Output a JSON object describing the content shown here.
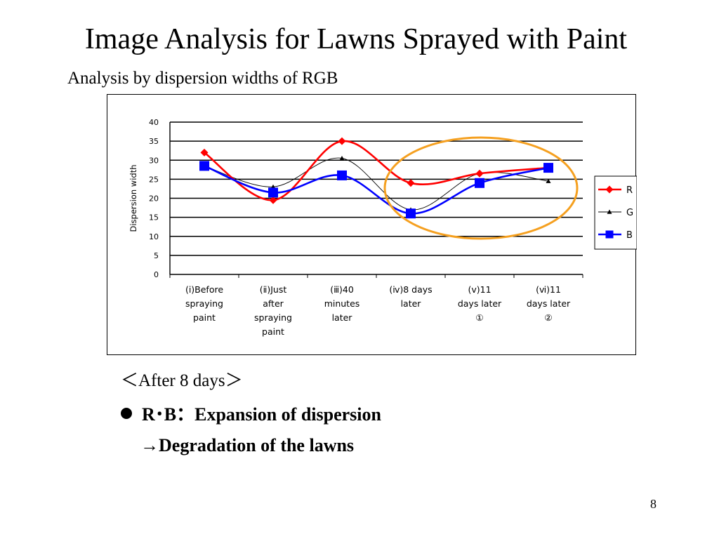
{
  "slide": {
    "title": "Image Analysis for Lawns Sprayed with Paint",
    "subtitle": "Analysis by dispersion widths of RGB",
    "after_label": "＜After 8 days＞",
    "bullet_text": "R･B：Expansion of dispersion",
    "arrow_text": "→Degradation of the lawns",
    "page_number": "8"
  },
  "chart_data": {
    "type": "line",
    "title": "",
    "xlabel": "",
    "ylabel": "Dispersion width",
    "ylim": [
      0,
      40
    ],
    "yticks": [
      0,
      5,
      10,
      15,
      20,
      25,
      30,
      35,
      40
    ],
    "grid": true,
    "legend_position": "right",
    "categories": [
      [
        "(ⅰ)Before",
        "spraying",
        "paint"
      ],
      [
        "(ⅱ)Just",
        "after",
        "spraying",
        "paint"
      ],
      [
        "(ⅲ)40",
        "minutes",
        "later"
      ],
      [
        "(ⅳ)8 days",
        "later"
      ],
      [
        "(ⅴ)11",
        "days later",
        "①"
      ],
      [
        "(ⅵ)11",
        "days later",
        "②"
      ]
    ],
    "series": [
      {
        "name": "R",
        "color": "#ff0000",
        "marker": "diamond",
        "values": [
          32,
          19.5,
          35,
          24,
          26.5,
          28
        ]
      },
      {
        "name": "G",
        "color": "#000000",
        "marker": "triangle",
        "values": [
          28.5,
          23,
          30.5,
          17,
          26.5,
          24.5
        ]
      },
      {
        "name": "B",
        "color": "#0000ff",
        "marker": "square",
        "values": [
          28.5,
          21.5,
          26,
          16,
          24,
          28
        ]
      }
    ],
    "highlight_color": "#f5a020"
  }
}
